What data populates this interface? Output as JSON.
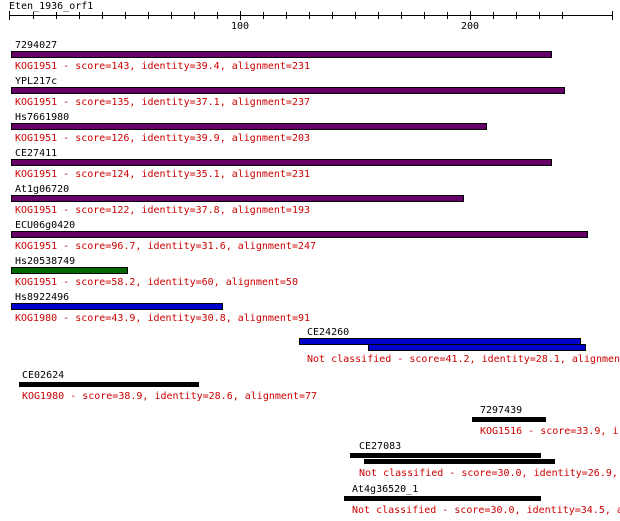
{
  "ruler": {
    "title": "Eten_1936_orf1",
    "length": 250,
    "tick_labels": [
      "100",
      "200"
    ],
    "tick_values": [
      100,
      200
    ]
  },
  "colors": {
    "purple": "#660066",
    "green": "#006600",
    "blue": "#0000cc",
    "black": "#000000",
    "desc": "#cc0000"
  },
  "hits": [
    {
      "name": "7294027",
      "desc": "KOG1951 - score=143, identity=39.4, alignment=231",
      "color": "purple",
      "segments": [
        [
          1,
          235
        ]
      ]
    },
    {
      "name": "YPL217c",
      "desc": "KOG1951 - score=135, identity=37.1, alignment=237",
      "color": "purple",
      "segments": [
        [
          1,
          241
        ]
      ]
    },
    {
      "name": "Hs7661980",
      "desc": "KOG1951 - score=126, identity=39.9, alignment=203",
      "color": "purple",
      "segments": [
        [
          1,
          207
        ]
      ]
    },
    {
      "name": "CE27411",
      "desc": "KOG1951 - score=124, identity=35.1, alignment=231",
      "color": "purple",
      "segments": [
        [
          1,
          235
        ]
      ]
    },
    {
      "name": "At1g06720",
      "desc": "KOG1951 - score=122, identity=37.8, alignment=193",
      "color": "purple",
      "segments": [
        [
          1,
          197
        ]
      ]
    },
    {
      "name": "ECU06g0420",
      "desc": "KOG1951 - score=96.7, identity=31.6, alignment=247",
      "color": "purple",
      "segments": [
        [
          1,
          251
        ]
      ]
    },
    {
      "name": "Hs20538749",
      "desc": "KOG1951 - score=58.2, identity=60, alignment=50",
      "color": "green",
      "segments": [
        [
          1,
          51
        ]
      ]
    },
    {
      "name": "Hs8922496",
      "desc": "KOG1980 - score=43.9, identity=30.8, alignment=91",
      "color": "blue",
      "segments": [
        [
          1,
          92
        ]
      ]
    },
    {
      "name": "CE24260",
      "desc": "Not classified - score=41.2, identity=28.1, alignmen",
      "color": "blue",
      "segments": [
        [
          126,
          248
        ],
        [
          156,
          250
        ]
      ]
    },
    {
      "name": "CE02624",
      "desc": "KOG1980 - score=38.9, identity=28.6, alignment=77",
      "color": "black",
      "segments": [
        [
          4,
          82
        ]
      ]
    },
    {
      "name": "7297439",
      "desc": "KOG1516 - score=33.9, i",
      "color": "black",
      "segments": [
        [
          201,
          233
        ]
      ]
    },
    {
      "name": "CE27083",
      "desc": "Not classified - score=30.0, identity=26.9,",
      "color": "black",
      "segments": [
        [
          148,
          231
        ],
        [
          154,
          237
        ]
      ]
    },
    {
      "name": "At4g36520_1",
      "desc": "Not classified - score=30.0, identity=34.5, a",
      "color": "black",
      "segments": [
        [
          145,
          231
        ]
      ]
    }
  ]
}
